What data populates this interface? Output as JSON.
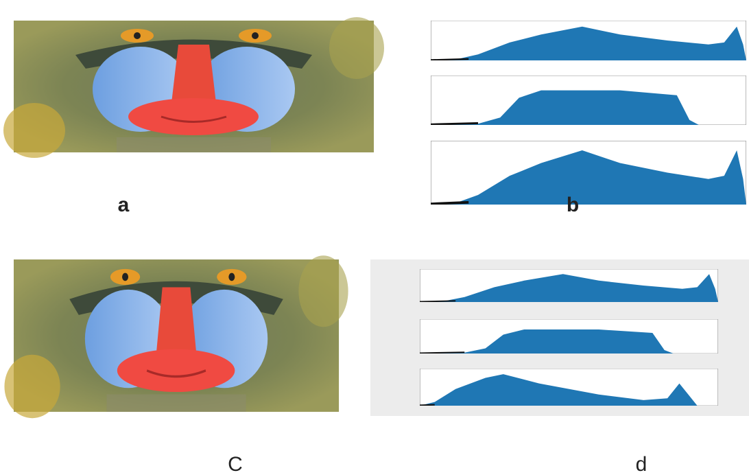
{
  "panels": [
    {
      "label": "a"
    },
    {
      "label": "b"
    },
    {
      "label": "C"
    },
    {
      "label": "d"
    }
  ]
}
